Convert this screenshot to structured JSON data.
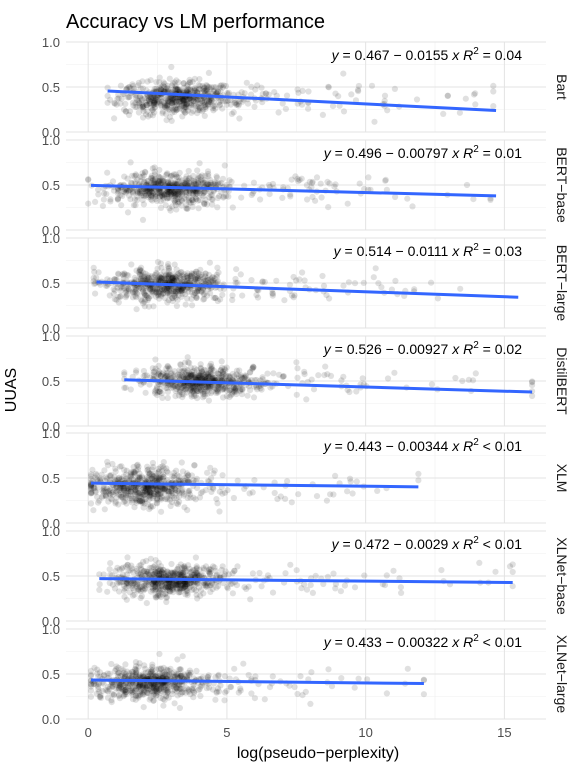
{
  "chart_data": {
    "type": "scatter",
    "title": "Accuracy vs LM performance",
    "xlabel": "log(pseudo−perplexity)",
    "ylabel": "UUAS",
    "xlim": [
      -0.8,
      16.5
    ],
    "ylim": [
      0,
      1.0
    ],
    "x_ticks": [
      0,
      5,
      10,
      15
    ],
    "x_tick_labels": [
      "0",
      "5",
      "10",
      "15"
    ],
    "y_ticks": [
      0,
      0.5,
      1.0
    ],
    "y_tick_labels": [
      "0.0",
      "0.5",
      "1.0"
    ],
    "grid": true,
    "point_color": "#000000",
    "fit_color": "#3366ff",
    "panels": [
      {
        "name": "Bart",
        "intercept": 0.467,
        "slope": -0.0155,
        "x_range": [
          0.7,
          14.7
        ],
        "eq_intercept": "0.467",
        "eq_slope": "0.0155",
        "r2_op": "=",
        "r2": "0.04"
      },
      {
        "name": "BERT−base",
        "intercept": 0.496,
        "slope": -0.00797,
        "x_range": [
          0.1,
          14.7
        ],
        "eq_intercept": "0.496",
        "eq_slope": "0.00797",
        "r2_op": "=",
        "r2": "0.01"
      },
      {
        "name": "BERT−large",
        "intercept": 0.514,
        "slope": -0.0111,
        "x_range": [
          0.3,
          15.5
        ],
        "eq_intercept": "0.514",
        "eq_slope": "0.0111",
        "r2_op": "=",
        "r2": "0.03"
      },
      {
        "name": "DistilBERT",
        "intercept": 0.526,
        "slope": -0.00927,
        "x_range": [
          1.3,
          16.0
        ],
        "eq_intercept": "0.526",
        "eq_slope": "0.00927",
        "r2_op": "=",
        "r2": "0.02"
      },
      {
        "name": "XLM",
        "intercept": 0.443,
        "slope": -0.00344,
        "x_range": [
          0.1,
          11.9
        ],
        "eq_intercept": "0.443",
        "eq_slope": "0.00344",
        "r2_op": "<",
        "r2": "0.01"
      },
      {
        "name": "XLNet−base",
        "intercept": 0.472,
        "slope": -0.0029,
        "x_range": [
          0.4,
          15.3
        ],
        "eq_intercept": "0.472",
        "eq_slope": "0.0029",
        "r2_op": "<",
        "r2": "0.01"
      },
      {
        "name": "XLNet−large",
        "intercept": 0.433,
        "slope": -0.00322,
        "x_range": [
          0.1,
          12.1
        ],
        "eq_intercept": "0.433",
        "eq_slope": "0.00322",
        "r2_op": "<",
        "r2": "0.01"
      }
    ],
    "point_clouds": [
      {
        "x_min": 0.7,
        "x_mode": 3.2,
        "x_max": 14.6,
        "y_center": 0.38,
        "y_spread": 0.09
      },
      {
        "x_min": 0.0,
        "x_mode": 2.8,
        "x_max": 14.5,
        "y_center": 0.45,
        "y_spread": 0.09
      },
      {
        "x_min": 0.2,
        "x_mode": 2.8,
        "x_max": 15.5,
        "y_center": 0.48,
        "y_spread": 0.09
      },
      {
        "x_min": 1.3,
        "x_mode": 4.0,
        "x_max": 16.0,
        "y_center": 0.5,
        "y_spread": 0.08
      },
      {
        "x_min": 0.1,
        "x_mode": 1.9,
        "x_max": 11.9,
        "y_center": 0.4,
        "y_spread": 0.1
      },
      {
        "x_min": 0.4,
        "x_mode": 2.9,
        "x_max": 15.3,
        "y_center": 0.45,
        "y_spread": 0.09
      },
      {
        "x_min": 0.1,
        "x_mode": 2.2,
        "x_max": 12.1,
        "y_center": 0.4,
        "y_spread": 0.09
      }
    ]
  }
}
